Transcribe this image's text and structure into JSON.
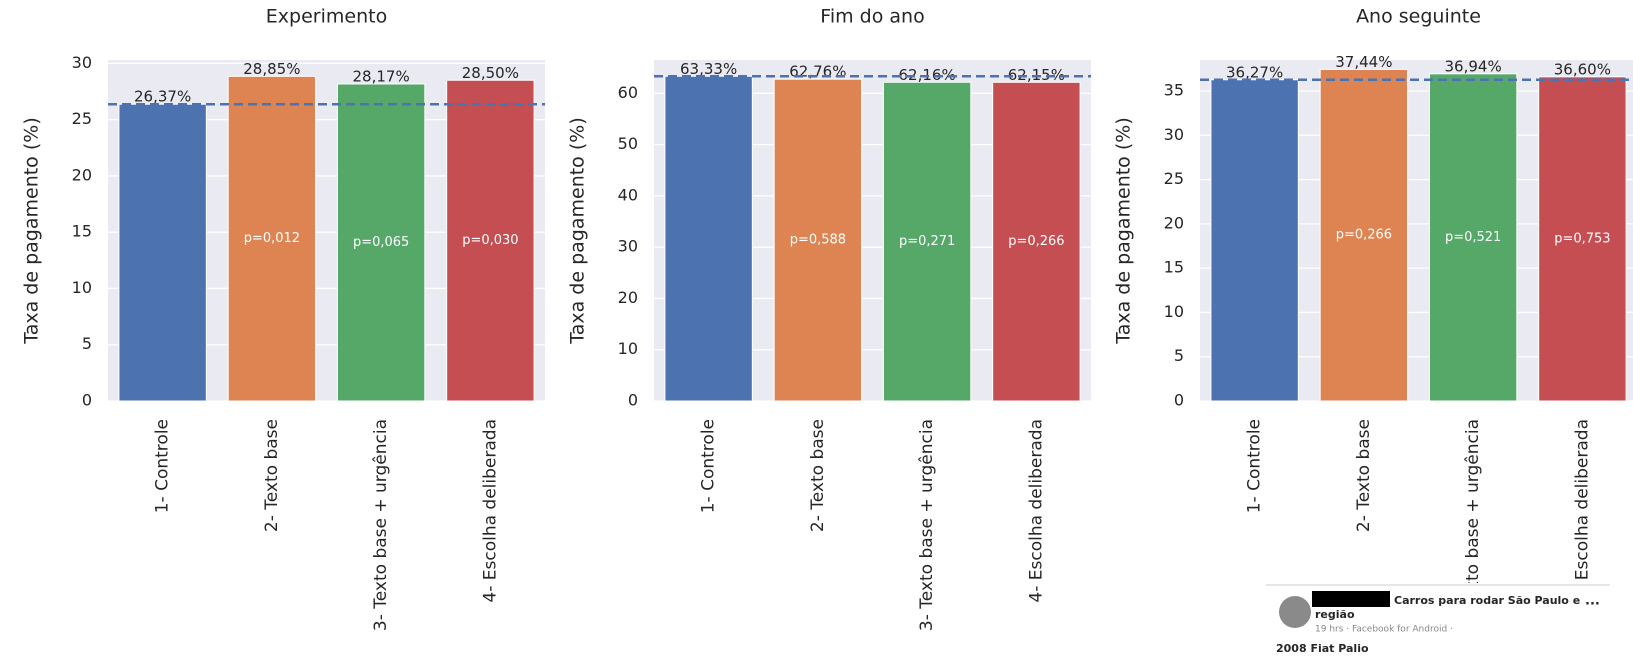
{
  "chart_data": [
    {
      "type": "bar",
      "title": "Experimento",
      "y_label": "Taxa de pagamento (%)",
      "categories": [
        "1- Controle",
        "2- Texto base",
        "3- Texto base + urgência",
        "4- Escolha deliberada"
      ],
      "values": [
        26.37,
        28.85,
        28.17,
        28.5
      ],
      "value_labels": [
        "26,37%",
        "28,85%",
        "28,17%",
        "28,50%"
      ],
      "p_labels": [
        null,
        "p=0,012",
        "p=0,065",
        "p=0,030"
      ],
      "colors": [
        "#4c72b0",
        "#dd8452",
        "#55a868",
        "#c44e52"
      ],
      "reference_line": 26.37,
      "ylim": [
        0,
        30.3
      ],
      "yticks": [
        0,
        5,
        10,
        15,
        20,
        25,
        30
      ],
      "grid": true
    },
    {
      "type": "bar",
      "title": "Fim do ano",
      "y_label": "Taxa de pagamento (%)",
      "categories": [
        "1- Controle",
        "2- Texto base",
        "3- Texto base + urgência",
        "4- Escolha deliberada"
      ],
      "values": [
        63.33,
        62.76,
        62.16,
        62.15
      ],
      "value_labels": [
        "63,33%",
        "62,76%",
        "62,16%",
        "62,15%"
      ],
      "p_labels": [
        null,
        "p=0,588",
        "p=0,271",
        "p=0,266"
      ],
      "colors": [
        "#4c72b0",
        "#dd8452",
        "#55a868",
        "#c44e52"
      ],
      "reference_line": 63.33,
      "ylim": [
        0,
        66.5
      ],
      "yticks": [
        0,
        10,
        20,
        30,
        40,
        50,
        60
      ],
      "grid": true
    },
    {
      "type": "bar",
      "title": "Ano seguinte",
      "y_label": "Taxa de pagamento (%)",
      "categories": [
        "1- Controle",
        "2- Texto base",
        "3- Texto base + urgência",
        "4- Escolha deliberada"
      ],
      "values": [
        36.27,
        37.44,
        36.94,
        36.6
      ],
      "value_labels": [
        "36,27%",
        "37,44%",
        "36,94%",
        "36,60%"
      ],
      "p_labels": [
        null,
        "p=0,266",
        "p=0,521",
        "p=0,753"
      ],
      "colors": [
        "#4c72b0",
        "#dd8452",
        "#55a868",
        "#c44e52"
      ],
      "reference_line": 36.27,
      "ylim": [
        0,
        38.5
      ],
      "yticks": [
        0,
        5,
        10,
        15,
        20,
        25,
        30,
        35
      ],
      "grid": true
    }
  ],
  "overlay": {
    "group": "Carros para rodar São Paulo e",
    "group_cont": "região",
    "meta": "19 hrs · Facebook for Android ·",
    "menu": "...",
    "post_title": "2008 Fiat Palio"
  }
}
